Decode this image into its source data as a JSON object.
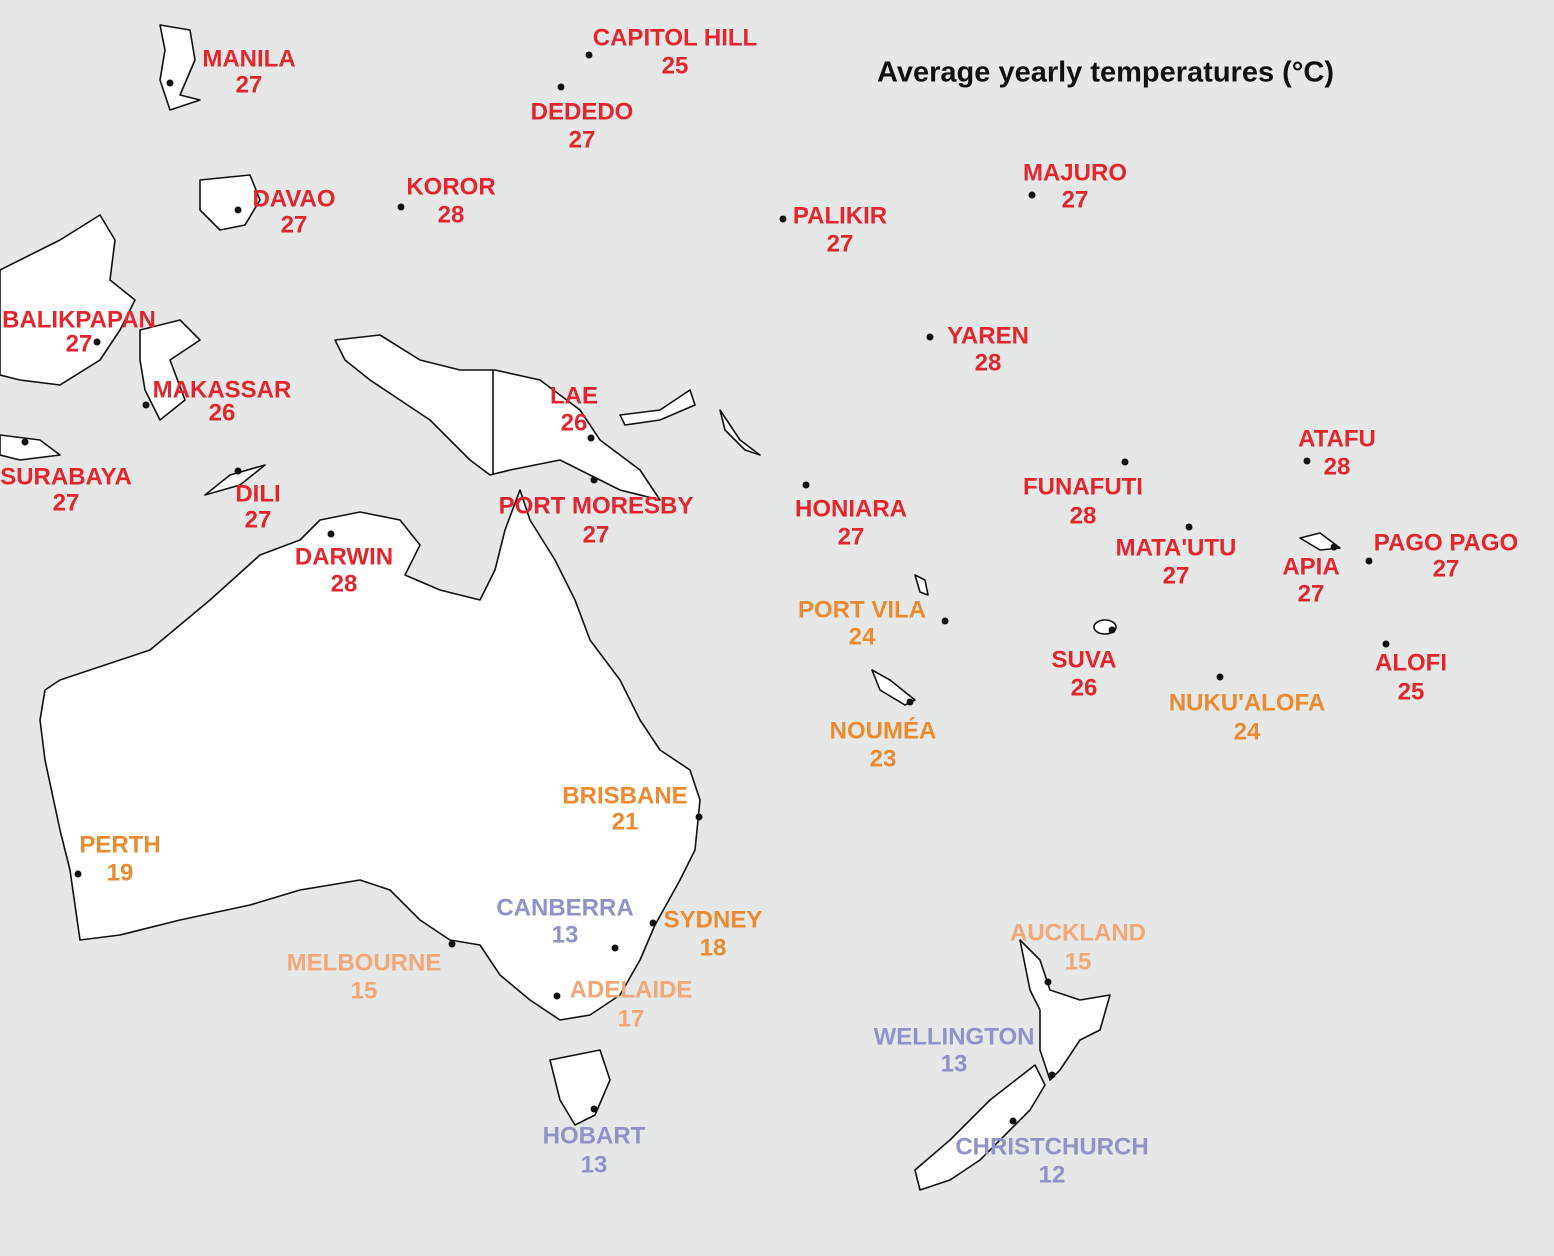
{
  "title": "Average yearly temperatures (°C)",
  "cities": [
    {
      "name": "MANILA",
      "temperature": 27,
      "color": "#e3262d"
    },
    {
      "name": "CAPITOL HILL",
      "temperature": 25,
      "color": "#e3262d"
    },
    {
      "name": "DEDEDO",
      "temperature": 27,
      "color": "#e3262d"
    },
    {
      "name": "DAVAO",
      "temperature": 27,
      "color": "#e3262d"
    },
    {
      "name": "KOROR",
      "temperature": 28,
      "color": "#e3262d"
    },
    {
      "name": "PALIKIR",
      "temperature": 27,
      "color": "#e3262d"
    },
    {
      "name": "MAJURO",
      "temperature": 27,
      "color": "#e3262d"
    },
    {
      "name": "BALIKPAPAN",
      "temperature": 27,
      "color": "#e3262d"
    },
    {
      "name": "YAREN",
      "temperature": 28,
      "color": "#e3262d"
    },
    {
      "name": "MAKASSAR",
      "temperature": 26,
      "color": "#e3262d"
    },
    {
      "name": "LAE",
      "temperature": 26,
      "color": "#e3262d"
    },
    {
      "name": "SURABAYA",
      "temperature": 27,
      "color": "#e3262d"
    },
    {
      "name": "DILI",
      "temperature": 27,
      "color": "#e3262d"
    },
    {
      "name": "PORT MORESBY",
      "temperature": 27,
      "color": "#e3262d"
    },
    {
      "name": "HONIARA",
      "temperature": 27,
      "color": "#e3262d"
    },
    {
      "name": "FUNAFUTI",
      "temperature": 28,
      "color": "#e3262d"
    },
    {
      "name": "ATAFU",
      "temperature": 28,
      "color": "#e3262d"
    },
    {
      "name": "DARWIN",
      "temperature": 28,
      "color": "#e3262d"
    },
    {
      "name": "MATA'UTU",
      "temperature": 27,
      "color": "#e3262d"
    },
    {
      "name": "APIA",
      "temperature": 27,
      "color": "#e3262d"
    },
    {
      "name": "PAGO PAGO",
      "temperature": 27,
      "color": "#e3262d"
    },
    {
      "name": "PORT VILA",
      "temperature": 24,
      "color": "#eb8a2e"
    },
    {
      "name": "SUVA",
      "temperature": 26,
      "color": "#e3262d"
    },
    {
      "name": "ALOFI",
      "temperature": 25,
      "color": "#e3262d"
    },
    {
      "name": "NUKU'ALOFA",
      "temperature": 24,
      "color": "#eb8a2e"
    },
    {
      "name": "NOUMÉA",
      "temperature": 23,
      "color": "#eb8a2e"
    },
    {
      "name": "BRISBANE",
      "temperature": 21,
      "color": "#eb8a2e"
    },
    {
      "name": "PERTH",
      "temperature": 19,
      "color": "#eb8a2e"
    },
    {
      "name": "CANBERRA",
      "temperature": 13,
      "color": "#8f93c7"
    },
    {
      "name": "SYDNEY",
      "temperature": 18,
      "color": "#eb8a2e"
    },
    {
      "name": "AUCKLAND",
      "temperature": 15,
      "color": "#f2a779"
    },
    {
      "name": "MELBOURNE",
      "temperature": 15,
      "color": "#f2a779"
    },
    {
      "name": "ADELAIDE",
      "temperature": 17,
      "color": "#f2a779"
    },
    {
      "name": "WELLINGTON",
      "temperature": 13,
      "color": "#8f93c7"
    },
    {
      "name": "HOBART",
      "temperature": 13,
      "color": "#8f93c7"
    },
    {
      "name": "CHRISTCHURCH",
      "temperature": 12,
      "color": "#8f93c7"
    }
  ]
}
